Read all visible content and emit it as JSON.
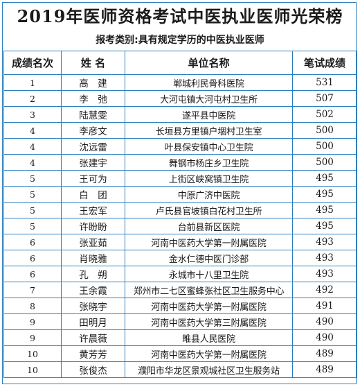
{
  "title": "2019年医师资格考试中医执业医师光荣榜",
  "subtitle": "报考类别:具有规定学历的中医执业医师",
  "headers": [
    "成绩名次",
    "姓 名",
    "单位名称",
    "笔试成绩"
  ],
  "rows": [
    {
      "rank": "1",
      "name": "高　建",
      "unit": "郸城利民骨科医院",
      "score": "531"
    },
    {
      "rank": "2",
      "name": "李　弛",
      "unit": "大河屯镇大河屯村卫生所",
      "score": "507"
    },
    {
      "rank": "3",
      "name": "陆慧雯",
      "unit": "遂平县中医院",
      "score": "502"
    },
    {
      "rank": "4",
      "name": "李彦文",
      "unit": "长垣县方里镇户堌村卫生室",
      "score": "500"
    },
    {
      "rank": "4",
      "name": "沈远雷",
      "unit": "叶县保安镇中心卫生院",
      "score": "500"
    },
    {
      "rank": "4",
      "name": "张建宇",
      "unit": "舞钢市杨庄乡卫生院",
      "score": "500"
    },
    {
      "rank": "5",
      "name": "王可为",
      "unit": "上街区峡窝镇卫生院",
      "score": "495"
    },
    {
      "rank": "5",
      "name": "白　团",
      "unit": "中原广济中医院",
      "score": "495"
    },
    {
      "rank": "5",
      "name": "王宏军",
      "unit": "卢氏县官坡镇白花村卫生所",
      "score": "495"
    },
    {
      "rank": "5",
      "name": "许盼盼",
      "unit": "台前县新区医院",
      "score": "495"
    },
    {
      "rank": "6",
      "name": "张亚茹",
      "unit": "河南中医药大学第一附属医院",
      "score": "493"
    },
    {
      "rank": "6",
      "name": "肖晓雅",
      "unit": "金水仁德中医门诊部",
      "score": "493"
    },
    {
      "rank": "6",
      "name": "孔　朔",
      "unit": "永城市十八里卫生院",
      "score": "493"
    },
    {
      "rank": "7",
      "name": "王余霞",
      "unit": "郑州市二七区蜜蜂张社区卫生服务中心",
      "score": "492"
    },
    {
      "rank": "8",
      "name": "张晓宇",
      "unit": "河南中医药大学第一附属医院",
      "score": "491"
    },
    {
      "rank": "9",
      "name": "田明月",
      "unit": "河南中医药大学第三附属医院",
      "score": "490"
    },
    {
      "rank": "9",
      "name": "许晨薇",
      "unit": "睢县人民医院",
      "score": "490"
    },
    {
      "rank": "10",
      "name": "黄芳芳",
      "unit": "河南中医药大学第一附属医院",
      "score": "489"
    },
    {
      "rank": "10",
      "name": "张俊杰",
      "unit": "濮阳市华龙区景观城社区卫生服务站",
      "score": "489"
    }
  ]
}
